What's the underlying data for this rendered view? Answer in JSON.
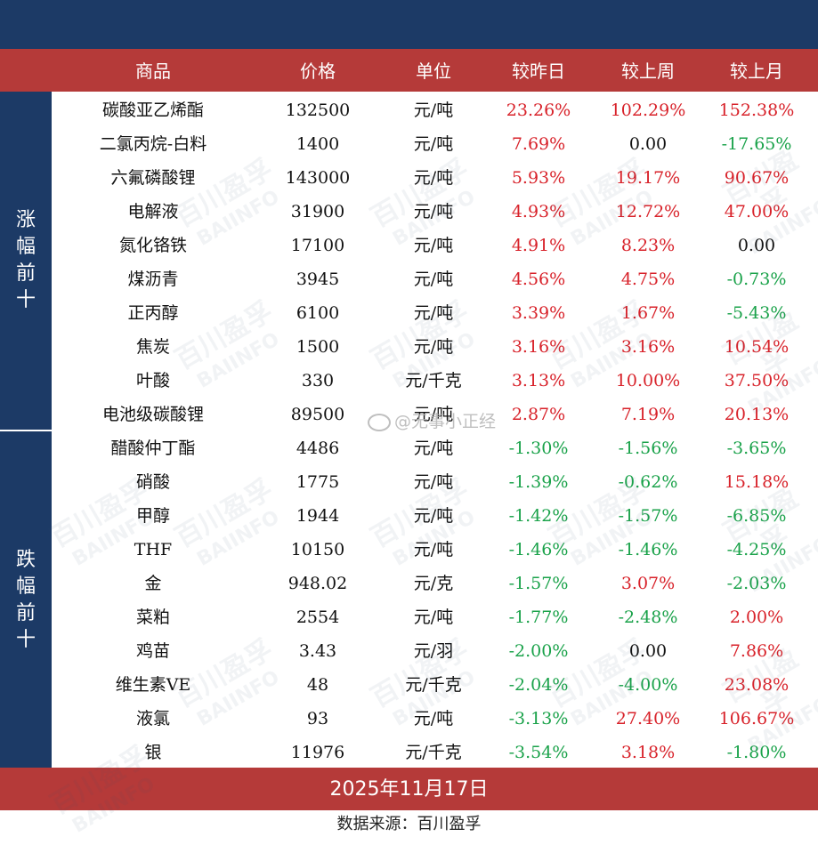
{
  "header": {
    "columns": [
      "商品",
      "价格",
      "单位",
      "较昨日",
      "较上周",
      "较上月"
    ]
  },
  "side_labels": {
    "up": "涨幅前十",
    "down": "跌幅前十"
  },
  "rows": [
    {
      "name": "碳酸亚乙烯酯",
      "price": "132500",
      "unit": "元/吨",
      "day": "23.26%",
      "week": "102.29%",
      "month": "152.38%"
    },
    {
      "name": "二氯丙烷-白料",
      "price": "1400",
      "unit": "元/吨",
      "day": "7.69%",
      "week": "0.00",
      "month": "-17.65%"
    },
    {
      "name": "六氟磷酸锂",
      "price": "143000",
      "unit": "元/吨",
      "day": "5.93%",
      "week": "19.17%",
      "month": "90.67%"
    },
    {
      "name": "电解液",
      "price": "31900",
      "unit": "元/吨",
      "day": "4.93%",
      "week": "12.72%",
      "month": "47.00%"
    },
    {
      "name": "氮化铬铁",
      "price": "17100",
      "unit": "元/吨",
      "day": "4.91%",
      "week": "8.23%",
      "month": "0.00"
    },
    {
      "name": "煤沥青",
      "price": "3945",
      "unit": "元/吨",
      "day": "4.56%",
      "week": "4.75%",
      "month": "-0.73%"
    },
    {
      "name": "正丙醇",
      "price": "6100",
      "unit": "元/吨",
      "day": "3.39%",
      "week": "1.67%",
      "month": "-5.43%"
    },
    {
      "name": "焦炭",
      "price": "1500",
      "unit": "元/吨",
      "day": "3.16%",
      "week": "3.16%",
      "month": "10.54%"
    },
    {
      "name": "叶酸",
      "price": "330",
      "unit": "元/千克",
      "day": "3.13%",
      "week": "10.00%",
      "month": "37.50%"
    },
    {
      "name": "电池级碳酸锂",
      "price": "89500",
      "unit": "元/吨",
      "day": "2.87%",
      "week": "7.19%",
      "month": "20.13%"
    },
    {
      "name": "醋酸仲丁酯",
      "price": "4486",
      "unit": "元/吨",
      "day": "-1.30%",
      "week": "-1.56%",
      "month": "-3.65%"
    },
    {
      "name": "硝酸",
      "price": "1775",
      "unit": "元/吨",
      "day": "-1.39%",
      "week": "-0.62%",
      "month": "15.18%"
    },
    {
      "name": "甲醇",
      "price": "1944",
      "unit": "元/吨",
      "day": "-1.42%",
      "week": "-1.57%",
      "month": "-6.85%"
    },
    {
      "name": "THF",
      "price": "10150",
      "unit": "元/吨",
      "day": "-1.46%",
      "week": "-1.46%",
      "month": "-4.25%"
    },
    {
      "name": "金",
      "price": "948.02",
      "unit": "元/克",
      "day": "-1.57%",
      "week": "3.07%",
      "month": "-2.03%"
    },
    {
      "name": "菜粕",
      "price": "2554",
      "unit": "元/吨",
      "day": "-1.77%",
      "week": "-2.48%",
      "month": "2.00%"
    },
    {
      "name": "鸡苗",
      "price": "3.43",
      "unit": "元/羽",
      "day": "-2.00%",
      "week": "0.00",
      "month": "7.86%"
    },
    {
      "name": "维生素VE",
      "price": "48",
      "unit": "元/千克",
      "day": "-2.04%",
      "week": "-4.00%",
      "month": "23.08%"
    },
    {
      "name": "液氯",
      "price": "93",
      "unit": "元/吨",
      "day": "-3.13%",
      "week": "27.40%",
      "month": "106.67%"
    },
    {
      "name": "银",
      "price": "11976",
      "unit": "元/千克",
      "day": "-3.54%",
      "week": "3.18%",
      "month": "-1.80%"
    }
  ],
  "footer": {
    "date": "2025年11月17日",
    "source": "数据来源：百川盈孚"
  },
  "watermark": {
    "brand_cn": "百川盈孚",
    "brand_en": "BAIINFO",
    "weibo": "@无事小正经"
  },
  "colors": {
    "navy": "#1c3a66",
    "red_band": "#b53a39",
    "positive": "#d8222a",
    "negative": "#1aa24a"
  }
}
